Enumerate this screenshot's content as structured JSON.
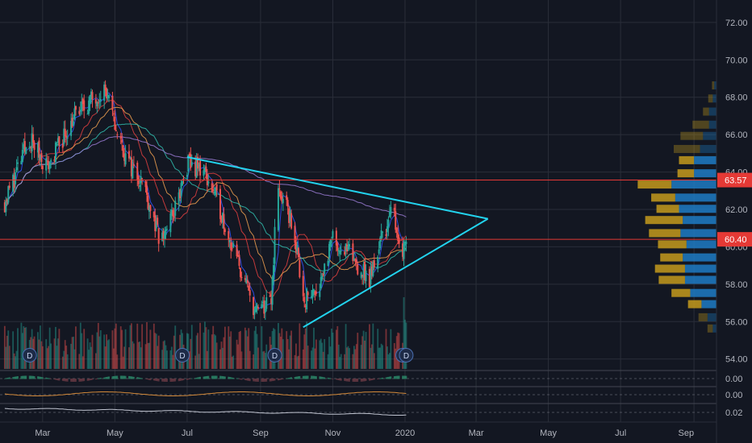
{
  "chart_data": {
    "type": "candlestick",
    "y_axis_ticks": [
      "72.00",
      "70.00",
      "68.00",
      "66.00",
      "64.00",
      "62.00",
      "60.00",
      "58.00",
      "56.00",
      "54.00"
    ],
    "y_tick_values": [
      72,
      70,
      68,
      66,
      64,
      62,
      60,
      58,
      56,
      54
    ],
    "ylim": [
      53.6,
      73.2
    ],
    "x_axis_labels": [
      "Mar",
      "May",
      "Jul",
      "Sep",
      "Nov",
      "2020",
      "Mar",
      "May",
      "Jul",
      "Sep"
    ],
    "x_label_dates": [
      "2019-03-01",
      "2019-05-01",
      "2019-07-01",
      "2019-09-01",
      "2019-11-01",
      "2020-01-01",
      "2020-03-01",
      "2020-05-01",
      "2020-07-01",
      "2020-09-01"
    ],
    "xlim": [
      "2019-01-24",
      "2020-09-20"
    ],
    "price_markers": [
      {
        "label": "63.57",
        "value": 63.57,
        "color": "#e53935"
      },
      {
        "label": "60.40",
        "value": 60.4,
        "color": "#e53935"
      }
    ],
    "key_points": [
      {
        "date": "2019-01-28",
        "close": 62.4
      },
      {
        "date": "2019-02-18",
        "close": 65.8
      },
      {
        "date": "2019-03-05",
        "close": 64.3
      },
      {
        "date": "2019-03-28",
        "close": 67.0
      },
      {
        "date": "2019-04-22",
        "close": 68.5
      },
      {
        "date": "2019-05-02",
        "close": 66.3
      },
      {
        "date": "2019-05-12",
        "close": 64.5
      },
      {
        "date": "2019-05-25",
        "close": 63.5
      },
      {
        "date": "2019-06-08",
        "close": 60.2
      },
      {
        "date": "2019-06-22",
        "close": 62.2
      },
      {
        "date": "2019-07-02",
        "close": 64.4
      },
      {
        "date": "2019-07-15",
        "close": 64.1
      },
      {
        "date": "2019-07-28",
        "close": 62.2
      },
      {
        "date": "2019-08-10",
        "close": 59.6
      },
      {
        "date": "2019-08-28",
        "close": 56.5
      },
      {
        "date": "2019-09-10",
        "close": 57.0
      },
      {
        "date": "2019-09-15",
        "close": 63.2
      },
      {
        "date": "2019-09-28",
        "close": 61.2
      },
      {
        "date": "2019-10-08",
        "close": 57.2
      },
      {
        "date": "2019-10-20",
        "close": 57.9
      },
      {
        "date": "2019-11-01",
        "close": 60.4
      },
      {
        "date": "2019-11-15",
        "close": 59.6
      },
      {
        "date": "2019-12-02",
        "close": 58.2
      },
      {
        "date": "2019-12-12",
        "close": 60.5
      },
      {
        "date": "2019-12-22",
        "close": 62.0
      },
      {
        "date": "2019-12-29",
        "close": 59.7
      },
      {
        "date": "2020-01-02",
        "close": 60.4
      }
    ],
    "trendlines": [
      {
        "name": "upper",
        "from": {
          "date": "2019-07-01",
          "price": 64.8
        },
        "to": {
          "date": "2020-03-11",
          "price": 61.5
        }
      },
      {
        "name": "lower",
        "from": {
          "date": "2019-10-07",
          "price": 55.7
        },
        "to": {
          "date": "2020-03-11",
          "price": 61.5
        }
      }
    ],
    "volume_profile": [
      {
        "price": 68.6,
        "up": 0.03,
        "down": 0.03
      },
      {
        "price": 67.9,
        "up": 0.05,
        "down": 0.06
      },
      {
        "price": 67.2,
        "up": 0.1,
        "down": 0.08
      },
      {
        "price": 66.5,
        "up": 0.1,
        "down": 0.22
      },
      {
        "price": 65.9,
        "up": 0.18,
        "down": 0.3
      },
      {
        "price": 65.2,
        "up": 0.22,
        "down": 0.35
      },
      {
        "price": 64.6,
        "up": 0.3,
        "down": 0.2
      },
      {
        "price": 63.9,
        "up": 0.3,
        "down": 0.22
      },
      {
        "price": 63.3,
        "up": 0.6,
        "down": 0.45
      },
      {
        "price": 62.6,
        "up": 0.55,
        "down": 0.32
      },
      {
        "price": 62.0,
        "up": 0.5,
        "down": 0.3
      },
      {
        "price": 61.4,
        "up": 0.45,
        "down": 0.5
      },
      {
        "price": 60.7,
        "up": 0.48,
        "down": 0.42
      },
      {
        "price": 60.1,
        "up": 0.4,
        "down": 0.38
      },
      {
        "price": 59.4,
        "up": 0.45,
        "down": 0.3
      },
      {
        "price": 58.8,
        "up": 0.42,
        "down": 0.4
      },
      {
        "price": 58.2,
        "up": 0.42,
        "down": 0.35
      },
      {
        "price": 57.5,
        "up": 0.35,
        "down": 0.25
      },
      {
        "price": 56.9,
        "up": 0.2,
        "down": 0.18
      },
      {
        "price": 56.2,
        "up": 0.12,
        "down": 0.12
      },
      {
        "price": 55.6,
        "up": 0.05,
        "down": 0.07
      }
    ],
    "events": [
      {
        "label": "D",
        "date": "2019-02-18"
      },
      {
        "label": "D",
        "date": "2019-06-27"
      },
      {
        "label": "D",
        "date": "2019-09-13"
      },
      {
        "label": "D",
        "date": "2019-12-30"
      },
      {
        "label": "D",
        "date": "2020-01-02"
      }
    ],
    "indicator_panes": [
      {
        "value_label": "0.00"
      },
      {
        "value_label": "0.00"
      },
      {
        "value_label": "0.02"
      }
    ]
  },
  "colors": {
    "background": "#131722",
    "grid": "#2a2e39",
    "axis_text": "#b2b5be",
    "up": "#26a69a",
    "down": "#ef5350",
    "trendline": "#22d3ee",
    "profile_up": "#1e7bc4",
    "profile_down": "#c49a1c",
    "marker": "#e53935",
    "ma_purple": "#9c7cd6",
    "ma_blue": "#3355ff",
    "ma_orange": "#f0a050",
    "ma_red": "#e04040",
    "ma_cyan": "#30c0b0"
  }
}
